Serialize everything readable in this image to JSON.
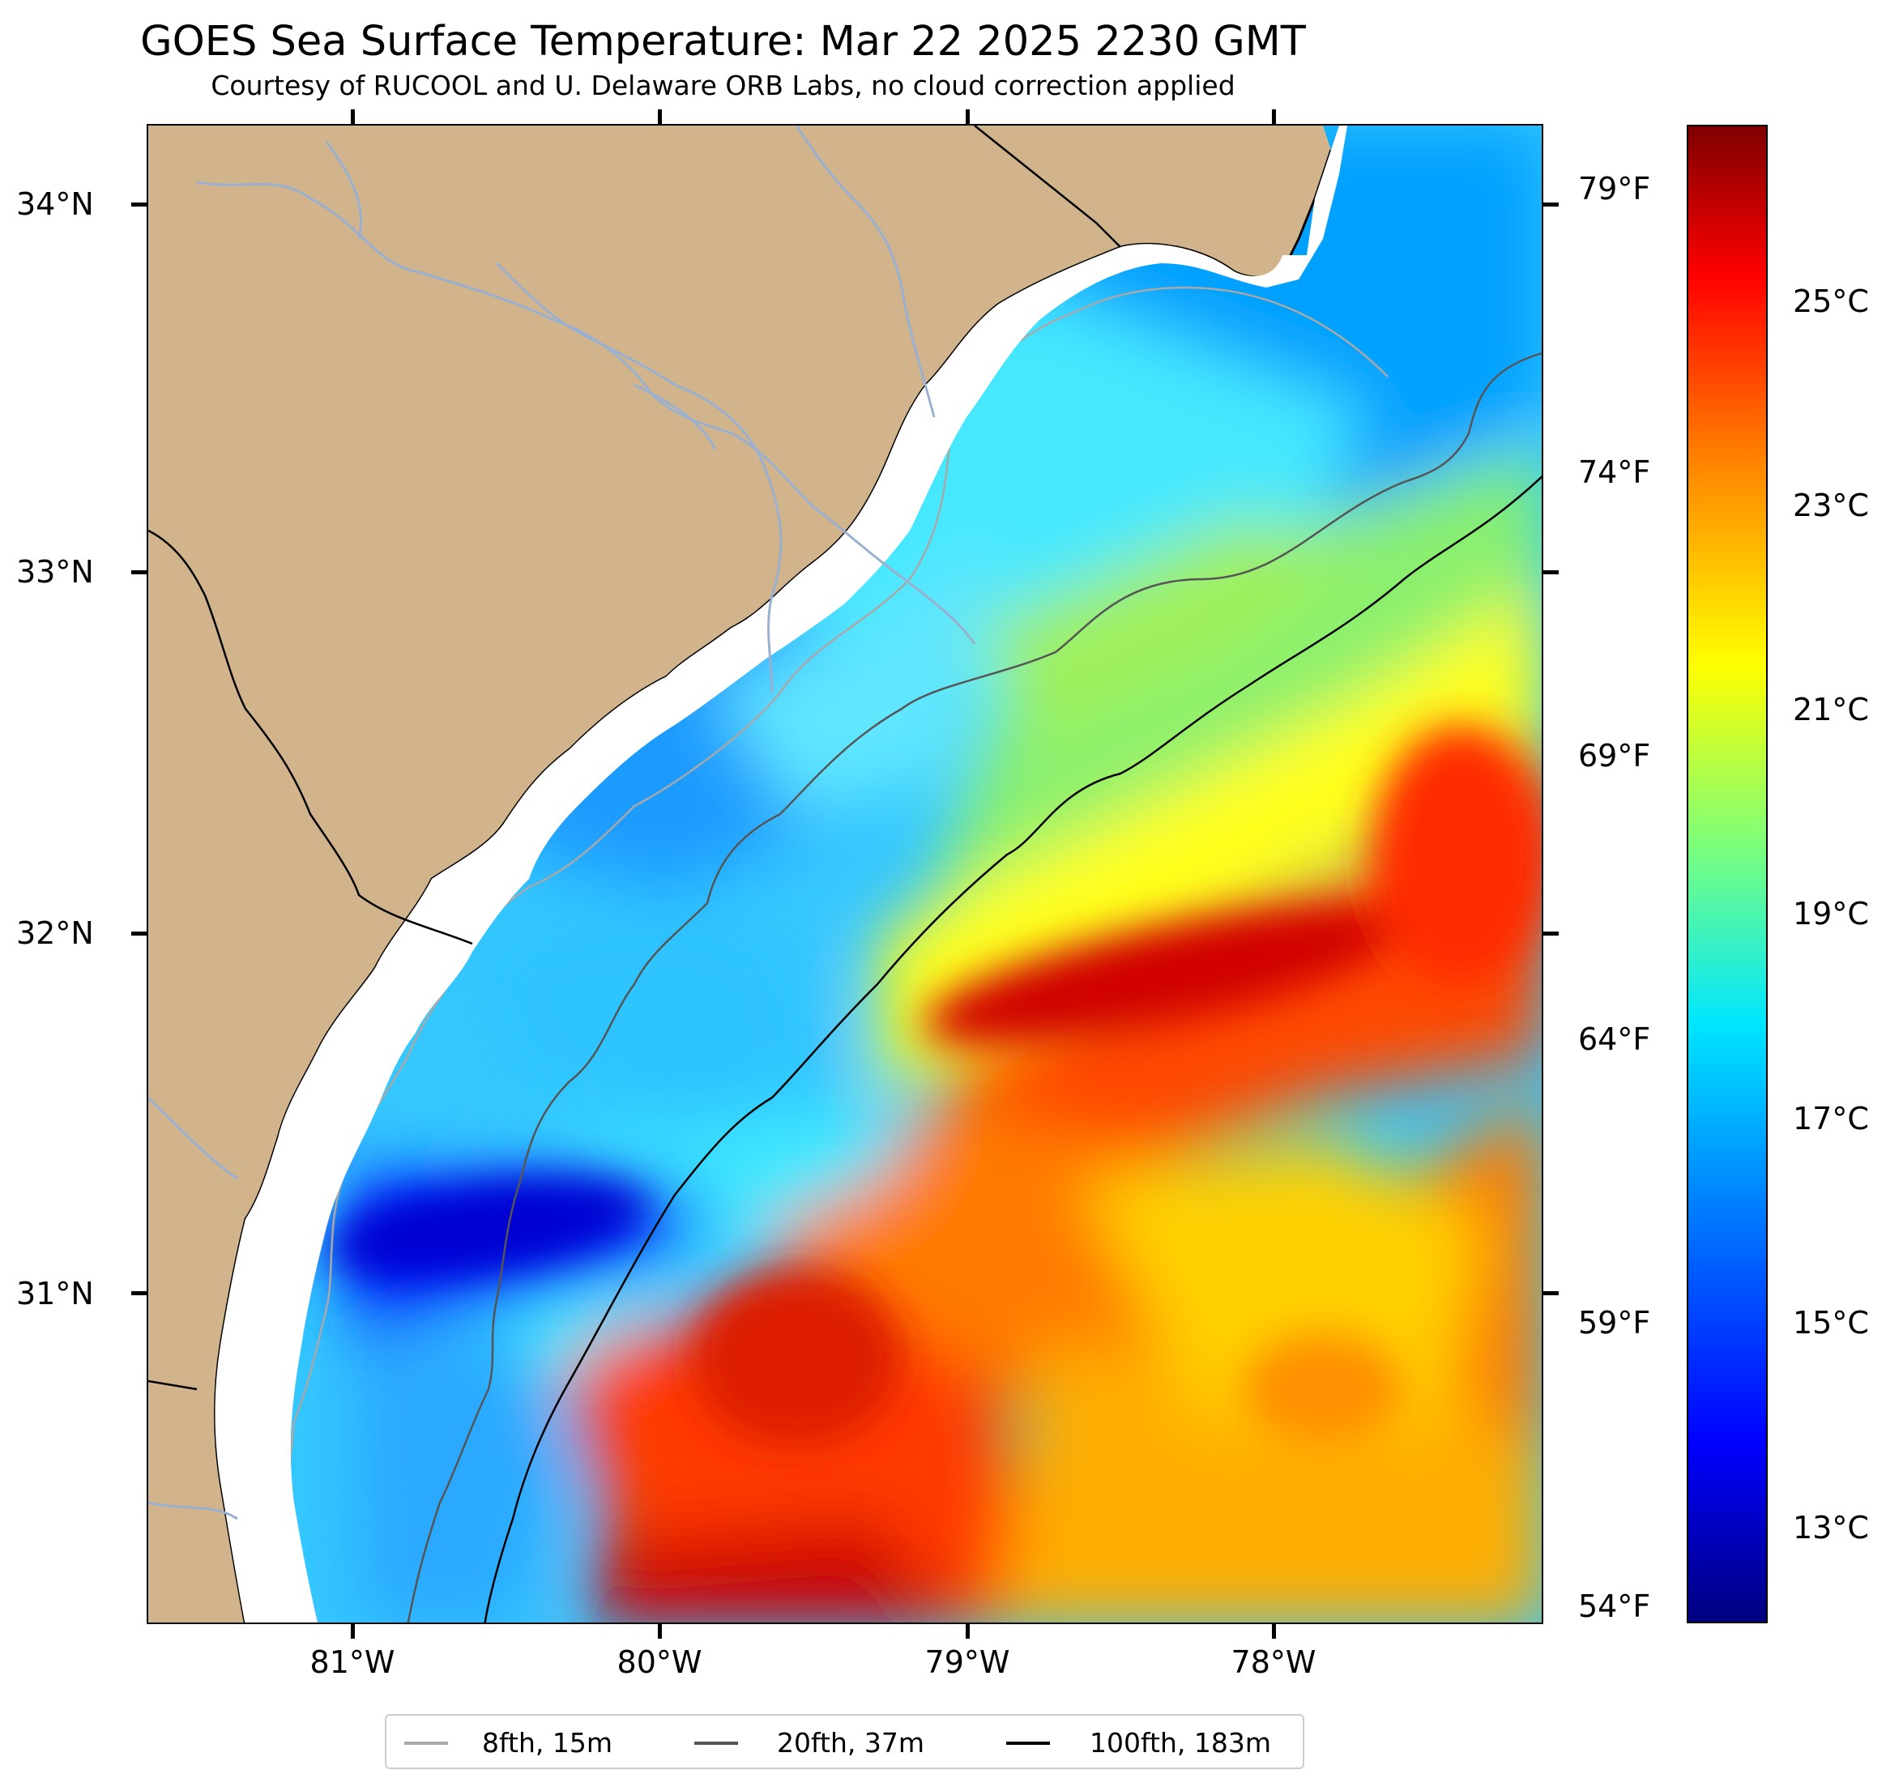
{
  "title": "GOES Sea Surface Temperature: Mar 22 2025 2230 GMT",
  "subtitle": "Courtesy of RUCOOL and U. Delaware ORB Labs, no cloud correction applied",
  "axes": {
    "lat_labels": [
      "34°N",
      "33°N",
      "32°N",
      "31°N"
    ],
    "lon_labels": [
      "81°W",
      "80°W",
      "79°W",
      "78°W"
    ]
  },
  "colorbar": {
    "celsius_labels": [
      "25°C",
      "23°C",
      "21°C",
      "19°C",
      "17°C",
      "15°C",
      "13°C"
    ],
    "fahrenheit_labels": [
      "79°F",
      "74°F",
      "69°F",
      "64°F",
      "59°F",
      "54°F"
    ]
  },
  "legend": [
    {
      "label": "8fth, 15m",
      "color": "#aaaaaa"
    },
    {
      "label": "20fth, 37m",
      "color": "#555555"
    },
    {
      "label": "100fth, 183m",
      "color": "#000000"
    }
  ],
  "colors": {
    "land": "#d2b48c",
    "rivers": "#9ab0d0",
    "coast_gap": "#ffffff"
  }
}
